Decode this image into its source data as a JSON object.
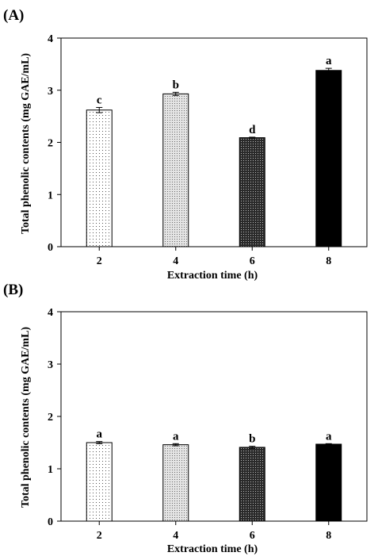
{
  "chart_data": [
    {
      "type": "bar",
      "panel_label": "(A)",
      "categories": [
        "2",
        "4",
        "6",
        "8"
      ],
      "values": [
        2.62,
        2.93,
        2.09,
        3.38
      ],
      "errors": [
        0.05,
        0.03,
        0.01,
        0.04
      ],
      "significance": [
        "c",
        "b",
        "d",
        "a"
      ],
      "xlabel": "Extraction time (h)",
      "ylabel": "Total phenolic contents (mg GAE/mL)",
      "ylim": [
        0,
        4
      ],
      "yticks": [
        "0",
        "1",
        "2",
        "3",
        "4"
      ],
      "grid": false,
      "legend": "none"
    },
    {
      "type": "bar",
      "panel_label": "(B)",
      "categories": [
        "2",
        "4",
        "6",
        "8"
      ],
      "values": [
        1.5,
        1.46,
        1.41,
        1.47
      ],
      "errors": [
        0.02,
        0.02,
        0.02,
        0.01
      ],
      "significance": [
        "a",
        "a",
        "b",
        "a"
      ],
      "xlabel": "Extraction time (h)",
      "ylabel": "Total phenolic contents (mg GAE/mL)",
      "ylim": [
        0,
        4
      ],
      "yticks": [
        "0",
        "1",
        "2",
        "3",
        "4"
      ],
      "grid": false,
      "legend": "none"
    }
  ]
}
